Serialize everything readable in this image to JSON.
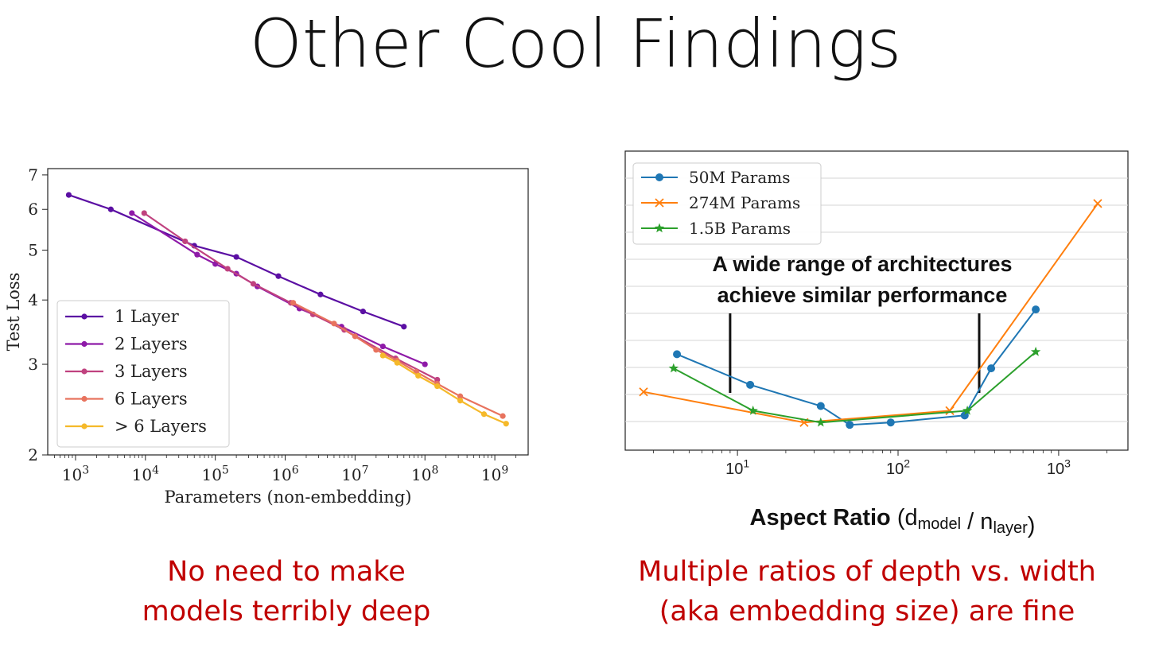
{
  "slide": {
    "title": "Other Cool Findings",
    "caption_left": [
      "No need to make",
      "models terribly deep"
    ],
    "caption_right": [
      "Multiple ratios of depth vs. width",
      "(aka embedding size) are fine"
    ],
    "caption_color": "#c00000"
  },
  "chart_data": [
    {
      "type": "line",
      "xlabel": "Parameters (non-embedding)",
      "ylabel": "Test Loss",
      "xscale": "log",
      "yscale": "log",
      "xlim": [
        400,
        3000000000
      ],
      "ylim": [
        2,
        7.2
      ],
      "xticks": [
        1000,
        10000,
        100000,
        1000000,
        10000000,
        100000000,
        1000000000
      ],
      "xtick_labels": [
        {
          "base": "10",
          "exp": "3"
        },
        {
          "base": "10",
          "exp": "4"
        },
        {
          "base": "10",
          "exp": "5"
        },
        {
          "base": "10",
          "exp": "6"
        },
        {
          "base": "10",
          "exp": "7"
        },
        {
          "base": "10",
          "exp": "8"
        },
        {
          "base": "10",
          "exp": "9"
        }
      ],
      "yticks": [
        2,
        3,
        4,
        5,
        6,
        7
      ],
      "ytick_labels": [
        "2",
        "3",
        "4",
        "5",
        "6",
        "7"
      ],
      "grid": false,
      "legend_position": "lower-left",
      "series": [
        {
          "name": "1 Layer",
          "color": "#5b0fa3",
          "x": [
            800,
            3200,
            50000,
            200000,
            800000,
            3200000,
            13000000,
            50000000
          ],
          "y": [
            6.4,
            6.0,
            5.1,
            4.85,
            4.45,
            4.1,
            3.8,
            3.55
          ]
        },
        {
          "name": "2 Layers",
          "color": "#8e1aa8",
          "x": [
            6400,
            55000,
            100000,
            200000,
            400000,
            1600000,
            6400000,
            25000000,
            100000000
          ],
          "y": [
            5.9,
            4.9,
            4.7,
            4.5,
            4.25,
            3.85,
            3.55,
            3.25,
            3.0
          ]
        },
        {
          "name": "3 Layers",
          "color": "#c0427f",
          "x": [
            9600,
            37000,
            150000,
            350000,
            1200000,
            2500000,
            7000000,
            38000000,
            150000000
          ],
          "y": [
            5.9,
            5.2,
            4.6,
            4.3,
            3.95,
            3.75,
            3.5,
            3.08,
            2.8
          ]
        },
        {
          "name": "6 Layers",
          "color": "#e8735e",
          "x": [
            1300000,
            5000000,
            10000000,
            20000000,
            40000000,
            75000000,
            150000000,
            320000000,
            1300000000
          ],
          "y": [
            3.95,
            3.6,
            3.4,
            3.2,
            3.05,
            2.9,
            2.75,
            2.6,
            2.38
          ]
        },
        {
          "name": "> 6 Layers",
          "color": "#f5b92a",
          "x": [
            25000000,
            40000000,
            80000000,
            150000000,
            320000000,
            700000000,
            1450000000
          ],
          "y": [
            3.12,
            3.02,
            2.85,
            2.72,
            2.55,
            2.4,
            2.3
          ]
        }
      ]
    },
    {
      "type": "line",
      "xlabel_bold": "Aspect Ratio",
      "xlabel_rest": [
        {
          "text": "(d"
        },
        {
          "text": "model",
          "sub": true
        },
        {
          "text": " / n"
        },
        {
          "text": "layer",
          "sub": true
        },
        {
          "text": ")"
        }
      ],
      "xscale": "log",
      "xlim": [
        2.0,
        2700
      ],
      "xticks": [
        10,
        100,
        1000
      ],
      "xtick_labels": [
        {
          "base": "10",
          "exp": "1"
        },
        {
          "base": "10",
          "exp": "2"
        },
        {
          "base": "10",
          "exp": "3"
        }
      ],
      "ylim": [
        0,
        100
      ],
      "grid": true,
      "legend_position": "top-left",
      "annotation": {
        "lines": [
          "A wide range of architectures",
          "achieve similar performance"
        ],
        "markers_x": [
          9,
          320
        ]
      },
      "series": [
        {
          "name": "50M Params",
          "color": "#1f77b4",
          "marker": "circle",
          "x": [
            4.2,
            12,
            33,
            50,
            90,
            260,
            380,
            720
          ],
          "y": [
            34,
            21,
            12,
            4,
            5,
            8,
            28,
            53
          ]
        },
        {
          "name": "274M Params",
          "color": "#ff7f0e",
          "marker": "x",
          "x": [
            2.6,
            26,
            210,
            1750
          ],
          "y": [
            18,
            5,
            10,
            98
          ]
        },
        {
          "name": "1.5B Params",
          "color": "#2ca02c",
          "marker": "star",
          "x": [
            4.0,
            12.5,
            33,
            270,
            720
          ],
          "y": [
            28,
            10,
            5,
            10,
            35
          ]
        }
      ]
    }
  ]
}
